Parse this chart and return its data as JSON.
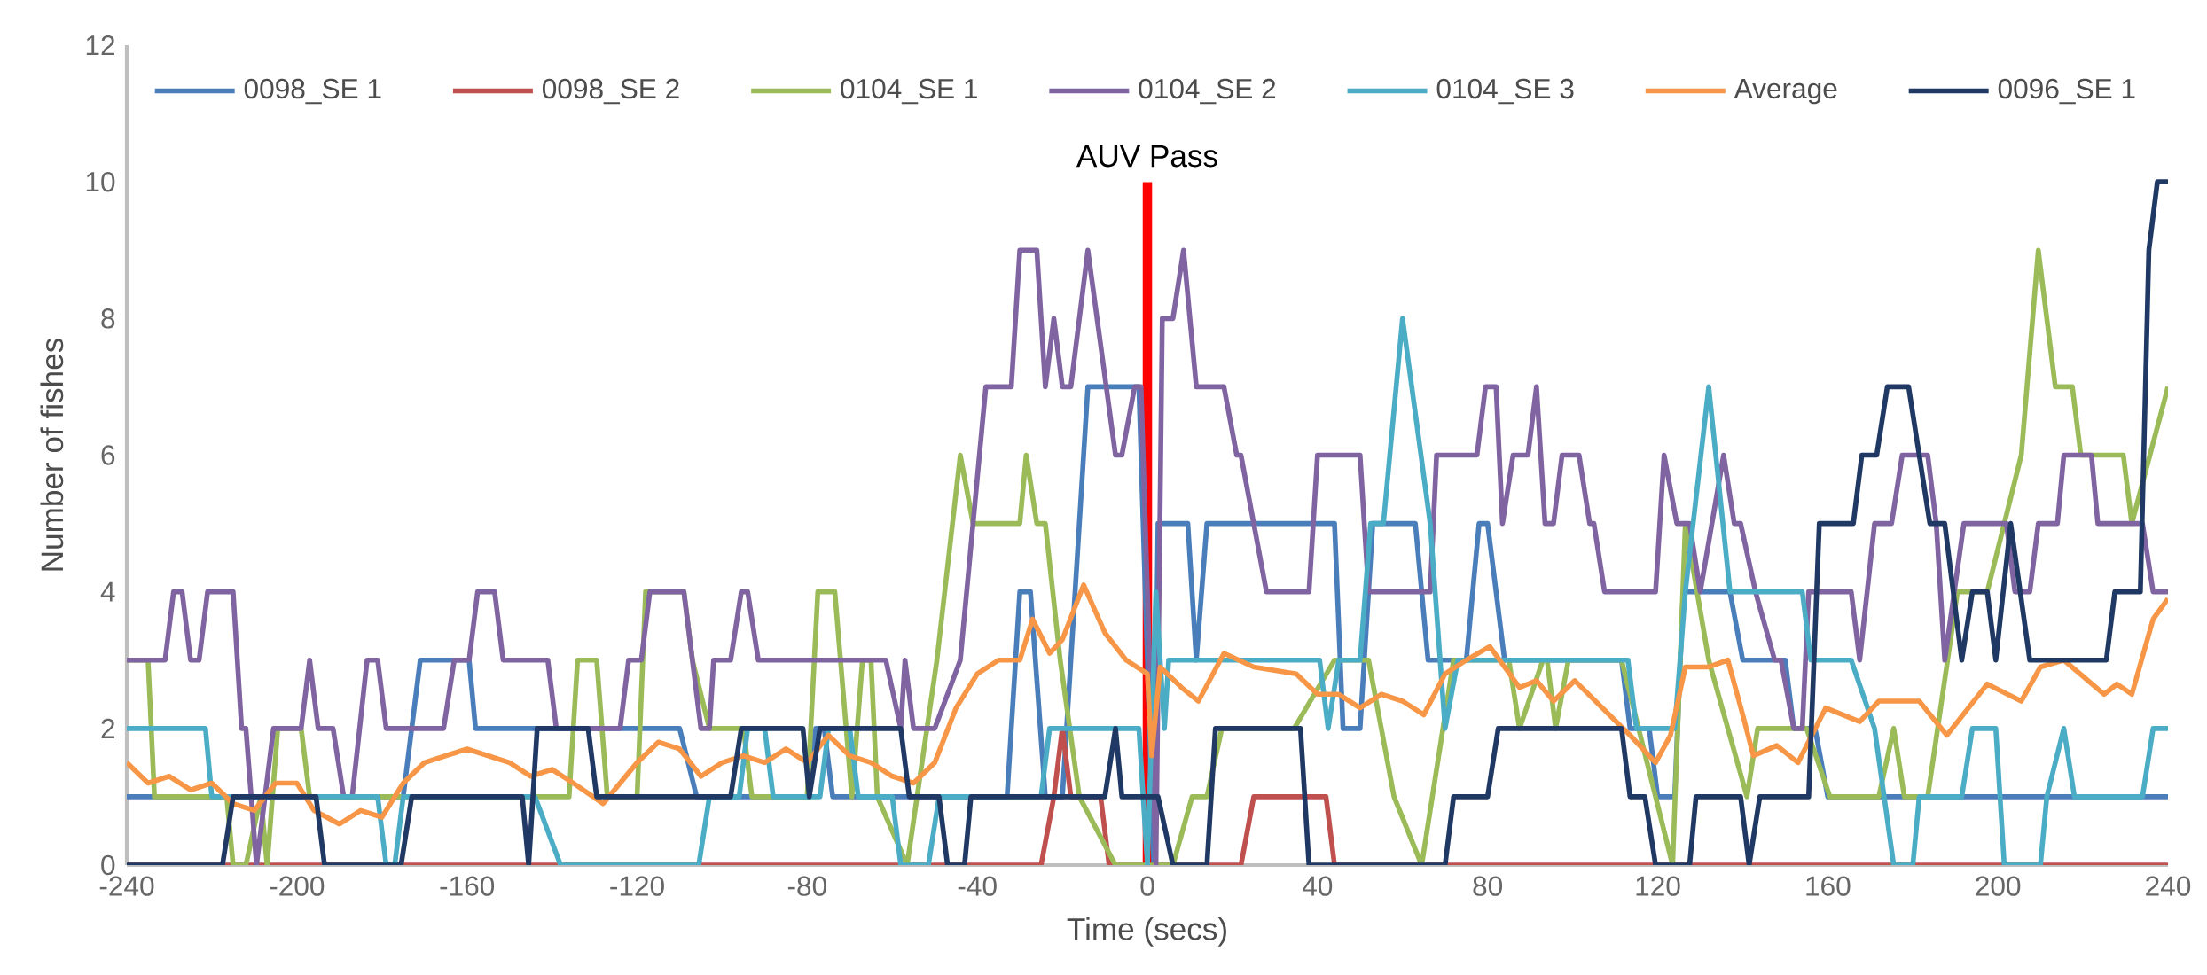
{
  "chart_data": {
    "type": "line",
    "xlabel": "Time (secs)",
    "ylabel": "Number of fishes",
    "xlim": [
      -240,
      240
    ],
    "ylim": [
      0,
      12
    ],
    "xticks": [
      -240,
      -200,
      -160,
      -120,
      -80,
      -40,
      0,
      40,
      80,
      120,
      160,
      200,
      240
    ],
    "yticks": [
      0,
      2,
      4,
      6,
      8,
      10,
      12
    ],
    "legend": "top",
    "line_style": "solid",
    "ref_lines": [
      {
        "axis": "x",
        "value": 0,
        "label": "AUV Pass",
        "color": "#ff0000"
      }
    ],
    "series": [
      {
        "name": "0098_SE 1",
        "color": "#4a7ebb",
        "x": [
          -240,
          -175,
          -171,
          -159.5,
          -158,
          -110,
          -106,
          -80,
          -78,
          -76,
          -74,
          -33,
          -30,
          -27.5,
          -24,
          -20,
          -14,
          -2,
          1.5,
          2.5,
          9.5,
          11.5,
          14,
          44,
          46,
          50,
          53,
          63,
          66,
          75,
          78,
          80,
          82,
          84,
          111.5,
          113.5,
          118,
          120,
          124,
          126,
          137,
          140,
          150,
          152,
          157,
          160,
          240
        ],
        "values": [
          1,
          1,
          3,
          3,
          2,
          2,
          1,
          1,
          2,
          2,
          1,
          1,
          4,
          4,
          1,
          1,
          7,
          7,
          0,
          5,
          5,
          3,
          5,
          5,
          2,
          2,
          5,
          5,
          3,
          3,
          5,
          5,
          4,
          3,
          3,
          2,
          2,
          1,
          1,
          4,
          4,
          3,
          3,
          2,
          2,
          1,
          1
        ]
      },
      {
        "name": "0098_SE 2",
        "color": "#c0504d",
        "x": [
          -240,
          -25,
          -22,
          -20,
          -18,
          -11,
          -9,
          22,
          25,
          42,
          44,
          240
        ],
        "values": [
          0,
          0,
          1,
          2,
          1,
          1,
          0,
          0,
          1,
          1,
          0,
          0
        ]
      },
      {
        "name": "0104_SE 1",
        "color": "#9bbb59",
        "x": [
          -240,
          -235,
          -233.5,
          -216.5,
          -215,
          -212,
          -208.5,
          -207,
          -204.5,
          -199,
          -197,
          -136,
          -134,
          -129.5,
          -127,
          -120,
          -118,
          -109,
          -107,
          -103,
          -95,
          -93,
          -80,
          -77.5,
          -73.5,
          -69.5,
          -67,
          -65,
          -63.5,
          -56.5,
          -49.5,
          -44,
          -41,
          -30,
          -28.5,
          -26,
          -24,
          -20.5,
          -16,
          -7.5,
          6,
          10.5,
          14,
          17.5,
          34.5,
          44,
          52,
          55,
          58,
          64.5,
          72,
          85,
          87.5,
          93,
          94,
          96,
          99,
          111.5,
          119.5,
          123.5,
          126.5,
          132,
          141,
          143.5,
          155,
          160.5,
          172,
          175.5,
          178,
          183.5,
          190.5,
          197.5,
          205.5,
          209.5,
          213.5,
          217.5,
          219.5,
          229.5,
          231.5,
          240
        ],
        "values": [
          3,
          3,
          1,
          1,
          0,
          0,
          1,
          0,
          2,
          2,
          1,
          1,
          3,
          3,
          1,
          1,
          4,
          4,
          3,
          2,
          2,
          1,
          1,
          4,
          4,
          1,
          3,
          3,
          1,
          0,
          3,
          6,
          5,
          5,
          6,
          5,
          5,
          3,
          1,
          0,
          0,
          1,
          1,
          2,
          2,
          3,
          3,
          2,
          1,
          0,
          3,
          3,
          2,
          3,
          3,
          2,
          3,
          3,
          1,
          0,
          5,
          3,
          1,
          2,
          2,
          1,
          1,
          2,
          1,
          1,
          4,
          4,
          6,
          9,
          7,
          7,
          6,
          6,
          5,
          7
        ]
      },
      {
        "name": "0104_SE 2",
        "color": "#8064a2",
        "x": [
          -240,
          -231,
          -229,
          -227,
          -225,
          -223,
          -221,
          -215,
          -213,
          -212,
          -209.5,
          -205.5,
          -199,
          -197,
          -195,
          -191.5,
          -189,
          -187,
          -183.5,
          -181,
          -179,
          -165.5,
          -163,
          -159.5,
          -157.5,
          -153.5,
          -151.5,
          -141,
          -139,
          -124,
          -122,
          -119,
          -117,
          -109,
          -105,
          -103,
          -102,
          -98,
          -95.5,
          -94,
          -91.5,
          -61.5,
          -58,
          -57,
          -55,
          -50,
          -44,
          -38,
          -32,
          -30,
          -26,
          -24,
          -22,
          -20,
          -18,
          -14,
          -7.5,
          -6,
          -3,
          -1.5,
          2,
          3.5,
          6,
          8.5,
          11.5,
          18,
          21,
          22,
          25,
          28,
          38,
          40,
          50,
          52,
          66.5,
          68,
          77.5,
          79.5,
          82,
          83.5,
          86,
          89.5,
          91.5,
          93.5,
          95.5,
          97.5,
          101.5,
          104,
          105,
          107.5,
          119.5,
          121.5,
          124.5,
          127.5,
          130,
          135.5,
          138,
          139.5,
          143,
          147.5,
          149,
          152,
          154,
          155.5,
          165.5,
          167.5,
          171,
          175,
          177.5,
          183.5,
          185.5,
          187.5,
          192,
          202,
          204,
          207.5,
          209.5,
          214,
          215.5,
          222,
          223.5,
          234,
          236.5,
          240
        ],
        "values": [
          3,
          3,
          4,
          4,
          3,
          3,
          4,
          4,
          2,
          2,
          0,
          2,
          2,
          3,
          2,
          2,
          1,
          1,
          3,
          3,
          2,
          2,
          3,
          3,
          4,
          4,
          3,
          3,
          2,
          2,
          3,
          3,
          4,
          4,
          2,
          2,
          3,
          3,
          4,
          4,
          3,
          3,
          2,
          3,
          2,
          2,
          3,
          7,
          7,
          9,
          9,
          7,
          8,
          7,
          7,
          9,
          6,
          6,
          7,
          7,
          0,
          8,
          8,
          9,
          7,
          7,
          6,
          6,
          5,
          4,
          4,
          6,
          6,
          4,
          4,
          6,
          6,
          7,
          7,
          5,
          6,
          6,
          7,
          5,
          5,
          6,
          6,
          5,
          5,
          4,
          4,
          6,
          5,
          5,
          4,
          6,
          5,
          5,
          4,
          3,
          3,
          2,
          2,
          4,
          4,
          3,
          5,
          5,
          6,
          6,
          5,
          3,
          5,
          5,
          4,
          4,
          5,
          5,
          6,
          6,
          5,
          5,
          4,
          4
        ]
      },
      {
        "name": "0104_SE 3",
        "color": "#4bacc6",
        "x": [
          -240,
          -221.5,
          -220,
          -181,
          -179,
          -177,
          -175,
          -144,
          -138,
          -105.5,
          -103,
          -96,
          -94,
          -90,
          -88,
          -77,
          -75,
          -70,
          -68,
          -60,
          -58,
          -51.5,
          -49,
          -25,
          -23,
          -2,
          0,
          2,
          4,
          5,
          40.5,
          42.5,
          45,
          50,
          52.5,
          55.5,
          60,
          66.5,
          70,
          73,
          113,
          115,
          124,
          126.5,
          132,
          137,
          154,
          156,
          165.5,
          171,
          175.5,
          180,
          181.5,
          191.5,
          194,
          199.5,
          201.5,
          210,
          211.5,
          215.5,
          218,
          234,
          236.5,
          240
        ],
        "values": [
          2,
          2,
          1,
          1,
          0,
          0,
          1,
          1,
          0,
          0,
          1,
          1,
          2,
          2,
          1,
          1,
          2,
          2,
          1,
          1,
          0,
          0,
          1,
          1,
          2,
          2,
          0,
          4,
          2,
          3,
          3,
          2,
          3,
          3,
          5,
          5,
          8,
          5,
          2,
          3,
          3,
          2,
          2,
          4,
          7,
          4,
          4,
          3,
          3,
          2,
          0,
          0,
          1,
          1,
          2,
          2,
          0,
          0,
          1,
          2,
          1,
          1,
          2,
          2
        ]
      },
      {
        "name": "Average",
        "color": "#f79646",
        "x": [
          -240,
          -235,
          -230,
          -225,
          -220,
          -215,
          -210,
          -205,
          -200,
          -196,
          -190,
          -185,
          -180,
          -175,
          -170,
          -160,
          -150,
          -145,
          -140,
          -135,
          -128,
          -120,
          -115,
          -110,
          -105,
          -100,
          -95,
          -90,
          -85,
          -80,
          -75,
          -70,
          -65,
          -60,
          -55,
          -50,
          -45,
          -40,
          -35,
          -30,
          -27,
          -23,
          -20,
          -15,
          -10,
          -5,
          0,
          1,
          3,
          8,
          12,
          18,
          25,
          35,
          40,
          45,
          50,
          55,
          60,
          65,
          70,
          75,
          80.5,
          87.5,
          91.5,
          95.5,
          100.5,
          107,
          113.5,
          119.5,
          123,
          126.5,
          132,
          136.5,
          140,
          142.5,
          148,
          153,
          159.5,
          167.5,
          172,
          181.5,
          188,
          197.5,
          205.5,
          210,
          215.5,
          225,
          228,
          231.5,
          236.5,
          240
        ],
        "values": [
          1.5,
          1.2,
          1.3,
          1.1,
          1.2,
          0.9,
          0.8,
          1.2,
          1.2,
          0.8,
          0.6,
          0.8,
          0.7,
          1.2,
          1.5,
          1.7,
          1.5,
          1.3,
          1.4,
          1.2,
          0.9,
          1.5,
          1.8,
          1.7,
          1.3,
          1.5,
          1.6,
          1.5,
          1.7,
          1.5,
          1.9,
          1.6,
          1.5,
          1.3,
          1.2,
          1.5,
          2.3,
          2.8,
          3.0,
          3.0,
          3.6,
          3.1,
          3.3,
          4.1,
          3.4,
          3.0,
          2.8,
          1.6,
          2.9,
          2.6,
          2.4,
          3.1,
          2.9,
          2.8,
          2.5,
          2.5,
          2.3,
          2.5,
          2.4,
          2.2,
          2.8,
          3.0,
          3.2,
          2.6,
          2.7,
          2.4,
          2.7,
          2.3,
          1.9,
          1.5,
          1.9,
          2.9,
          2.9,
          3.0,
          2.2,
          1.6,
          1.75,
          1.5,
          2.3,
          2.1,
          2.4,
          2.4,
          1.9,
          2.65,
          2.4,
          2.9,
          3.0,
          2.5,
          2.65,
          2.5,
          3.6,
          3.9
        ]
      },
      {
        "name": "0096_SE 1",
        "color": "#1f3864",
        "x": [
          -240,
          -217.5,
          -215,
          -195.5,
          -193.5,
          -175.5,
          -173,
          -147,
          -145.5,
          -143.5,
          -131.5,
          -129.5,
          -98,
          -95.5,
          -81,
          -79.5,
          -77,
          -58,
          -56,
          -49,
          -47,
          -43,
          -41.5,
          -10,
          -7.5,
          -6,
          2.5,
          6,
          14,
          16,
          36,
          38,
          70,
          72,
          80,
          82.5,
          111.5,
          113.5,
          117,
          119.5,
          127.5,
          129,
          139.5,
          141.5,
          144,
          155.5,
          158,
          166,
          168,
          171.5,
          174,
          179,
          184,
          187.5,
          191.5,
          194,
          197.5,
          199.5,
          203,
          207.5,
          225.5,
          227.5,
          233.5,
          235.5,
          237.5,
          240
        ],
        "values": [
          0,
          0,
          1,
          1,
          0,
          0,
          1,
          1,
          0,
          2,
          2,
          1,
          1,
          2,
          2,
          1,
          2,
          2,
          1,
          1,
          0,
          0,
          1,
          1,
          2,
          1,
          1,
          0,
          0,
          2,
          2,
          0,
          0,
          1,
          1,
          2,
          2,
          1,
          1,
          0,
          0,
          1,
          1,
          0,
          1,
          1,
          5,
          5,
          6,
          6,
          7,
          7,
          5,
          5,
          3,
          4,
          4,
          3,
          5,
          3,
          3,
          4,
          4,
          9,
          10,
          10
        ]
      }
    ]
  }
}
